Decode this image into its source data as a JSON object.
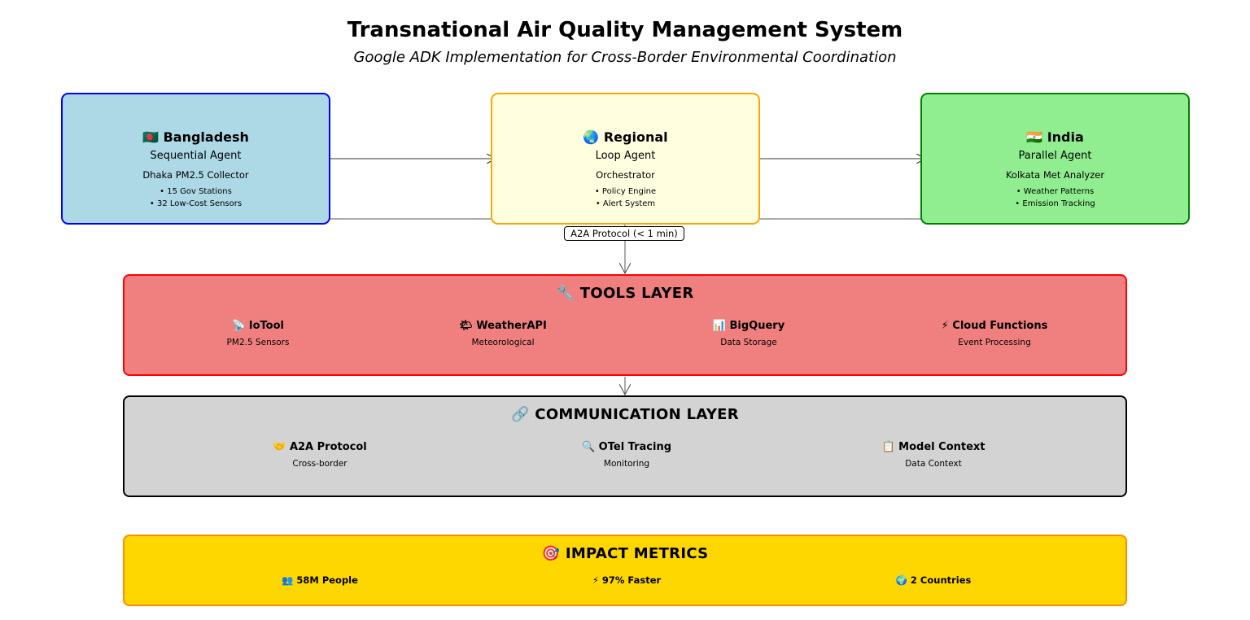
{
  "title": "Transnational Air Quality Management System",
  "subtitle": "Google ADK Implementation for Cross-Border Environmental Coordination",
  "agents": [
    {
      "flag_icon": "bangladesh-flag-icon",
      "name": "🇧🇩 Bangladesh",
      "type": "Sequential Agent",
      "role": "Dhaka PM2.5 Collector",
      "bullets": [
        "• 15 Gov Stations",
        "• 32 Low-Cost Sensors"
      ],
      "fill": "#add8e6",
      "border": "#0000ff"
    },
    {
      "flag_icon": "globe-icon",
      "name": "🌏 Regional",
      "type": "Loop Agent",
      "role": "Orchestrator",
      "bullets": [
        "• Policy Engine",
        "• Alert System"
      ],
      "fill": "#ffffe0",
      "border": "#ffa500"
    },
    {
      "flag_icon": "india-flag-icon",
      "name": "🇮🇳 India",
      "type": "Parallel Agent",
      "role": "Kolkata Met Analyzer",
      "bullets": [
        "• Weather Patterns",
        "• Emission Tracking"
      ],
      "fill": "#90ee90",
      "border": "#008000"
    }
  ],
  "protocol_label": "A2A Protocol (< 1 min)",
  "tools_layer": {
    "title": "🔧 TOOLS LAYER",
    "fill": "#f08080",
    "border": "#ff0000",
    "items": [
      {
        "icon": "satellite-icon",
        "name": "📡 IoTool",
        "desc": "PM2.5 Sensors"
      },
      {
        "icon": "cloud-icon",
        "name": "🌤 WeatherAPI",
        "desc": "Meteorological"
      },
      {
        "icon": "chart-icon",
        "name": "📊 BigQuery",
        "desc": "Data Storage"
      },
      {
        "icon": "lightning-icon",
        "name": "⚡ Cloud Functions",
        "desc": "Event Processing"
      }
    ]
  },
  "communication_layer": {
    "title": "🔗 COMMUNICATION LAYER",
    "fill": "#d3d3d3",
    "border": "#000000",
    "items": [
      {
        "icon": "handshake-icon",
        "name": "🤝 A2A Protocol",
        "desc": "Cross-border"
      },
      {
        "icon": "search-icon",
        "name": "🔍 OTel Tracing",
        "desc": "Monitoring"
      },
      {
        "icon": "clipboard-icon",
        "name": "📋 Model Context",
        "desc": "Data Context"
      }
    ]
  },
  "impact_metrics": {
    "title": "🎯 IMPACT METRICS",
    "fill": "#ffd700",
    "border": "#ff8c00",
    "items": [
      {
        "icon": "people-icon",
        "text": "👥 58M People"
      },
      {
        "icon": "lightning-icon",
        "text": "⚡ 97% Faster"
      },
      {
        "icon": "globe-icon",
        "text": "🌍 2 Countries"
      }
    ]
  }
}
